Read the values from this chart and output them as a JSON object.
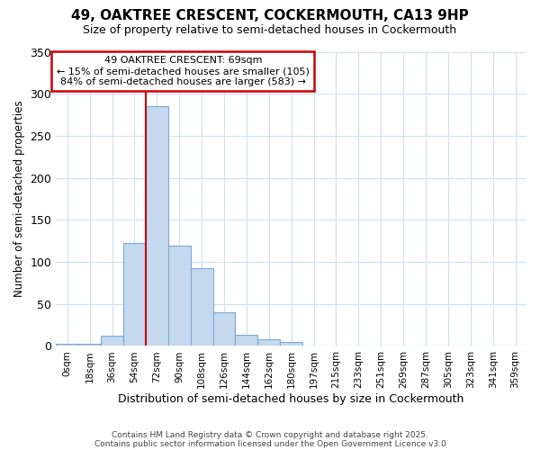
{
  "title": "49, OAKTREE CRESCENT, COCKERMOUTH, CA13 9HP",
  "subtitle": "Size of property relative to semi-detached houses in Cockermouth",
  "xlabel": "Distribution of semi-detached houses by size in Cockermouth",
  "ylabel": "Number of semi-detached properties",
  "bar_labels": [
    "0sqm",
    "18sqm",
    "36sqm",
    "54sqm",
    "72sqm",
    "90sqm",
    "108sqm",
    "126sqm",
    "144sqm",
    "162sqm",
    "180sqm",
    "197sqm",
    "215sqm",
    "233sqm",
    "251sqm",
    "269sqm",
    "287sqm",
    "305sqm",
    "323sqm",
    "341sqm",
    "359sqm"
  ],
  "bar_values": [
    3,
    3,
    12,
    122,
    285,
    119,
    93,
    40,
    13,
    8,
    5,
    1,
    0,
    0,
    0,
    0,
    0,
    0,
    0,
    0,
    1
  ],
  "bar_color": "#c5d8f0",
  "bar_edge_color": "#7aaad4",
  "annotation_title": "49 OAKTREE CRESCENT: 69sqm",
  "annotation_line1": "← 15% of semi-detached houses are smaller (105)",
  "annotation_line2": "84% of semi-detached houses are larger (583) →",
  "annotation_box_color": "#cc0000",
  "background_color": "#ffffff",
  "plot_bg_color": "#ffffff",
  "grid_color": "#d0dff0",
  "footer_line1": "Contains HM Land Registry data © Crown copyright and database right 2025.",
  "footer_line2": "Contains public sector information licensed under the Open Government Licence v3.0",
  "ylim": [
    0,
    350
  ],
  "red_line_bin": 4
}
